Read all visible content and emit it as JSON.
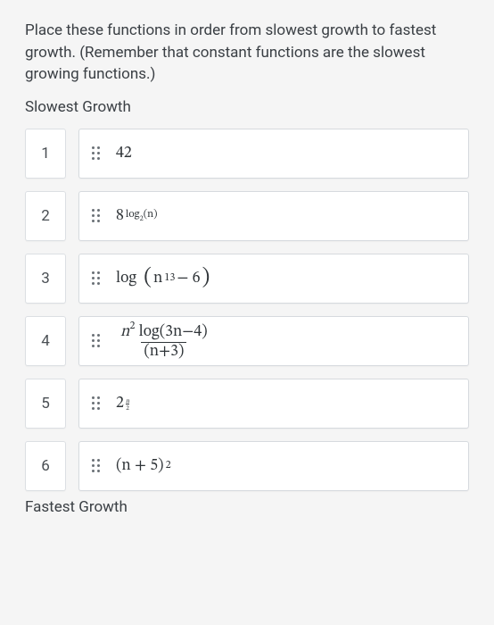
{
  "question": "Place these functions in order from slowest growth to fastest growth. (Remember that constant functions are the slowest growing functions.)",
  "labels": {
    "top": "Slowest Growth",
    "bottom": "Fastest Growth"
  },
  "items": [
    {
      "num": "1",
      "expr_type": "const",
      "value": "42"
    },
    {
      "num": "2",
      "expr_type": "power8log",
      "base": "8",
      "exp_prefix": "log",
      "exp_sub": "2",
      "exp_arg": "(n)"
    },
    {
      "num": "3",
      "expr_type": "log_big",
      "fn": "log",
      "inner_base": "n",
      "inner_exp": "13",
      "inner_tail": " − 6"
    },
    {
      "num": "4",
      "expr_type": "frac",
      "num_text_a": "n",
      "num_exp": "2",
      "num_text_b": " log(3n−4)",
      "den_text": "(n+3)"
    },
    {
      "num": "5",
      "expr_type": "pow_nfrac",
      "base": "2",
      "frac_num": "n",
      "frac_den": "2"
    },
    {
      "num": "6",
      "expr_type": "binom_sq",
      "inner": "(n + 5)",
      "exp": "2"
    }
  ],
  "colors": {
    "page_bg": "#f5f5f5",
    "card_bg": "#ffffff",
    "border": "#d6dade",
    "text": "#3a3f44",
    "handle": "#6a7076"
  }
}
